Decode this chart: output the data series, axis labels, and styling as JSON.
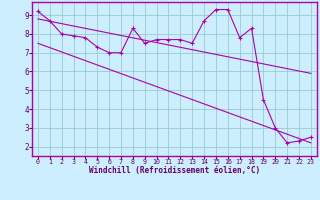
{
  "bg_color": "#cceeff",
  "line_color": "#aa00aa",
  "grid_color": "#99cccc",
  "xlabel": "Windchill (Refroidissement éolien,°C)",
  "xlim": [
    -0.5,
    23.5
  ],
  "ylim": [
    1.5,
    9.7
  ],
  "yticks": [
    2,
    3,
    4,
    5,
    6,
    7,
    8,
    9
  ],
  "xticks": [
    0,
    1,
    2,
    3,
    4,
    5,
    6,
    7,
    8,
    9,
    10,
    11,
    12,
    13,
    14,
    15,
    16,
    17,
    18,
    19,
    20,
    21,
    22,
    23
  ],
  "series1_x": [
    0,
    1,
    2,
    3,
    4,
    5,
    6,
    7,
    8,
    9,
    10,
    11,
    12,
    13,
    14,
    15,
    16,
    17,
    18,
    19,
    20,
    21,
    22,
    23
  ],
  "series1_y": [
    9.2,
    8.7,
    8.0,
    7.9,
    7.8,
    7.3,
    7.0,
    7.0,
    8.3,
    7.5,
    7.7,
    7.7,
    7.7,
    7.5,
    8.7,
    9.3,
    9.3,
    7.8,
    8.3,
    4.5,
    3.0,
    2.2,
    2.3,
    2.5
  ],
  "trend1_x": [
    0,
    23
  ],
  "trend1_y": [
    8.8,
    5.9
  ],
  "trend2_x": [
    0,
    23
  ],
  "trend2_y": [
    7.5,
    2.2
  ],
  "xlabel_color": "#660066",
  "tick_color": "#660066",
  "spine_color": "#aa00aa"
}
